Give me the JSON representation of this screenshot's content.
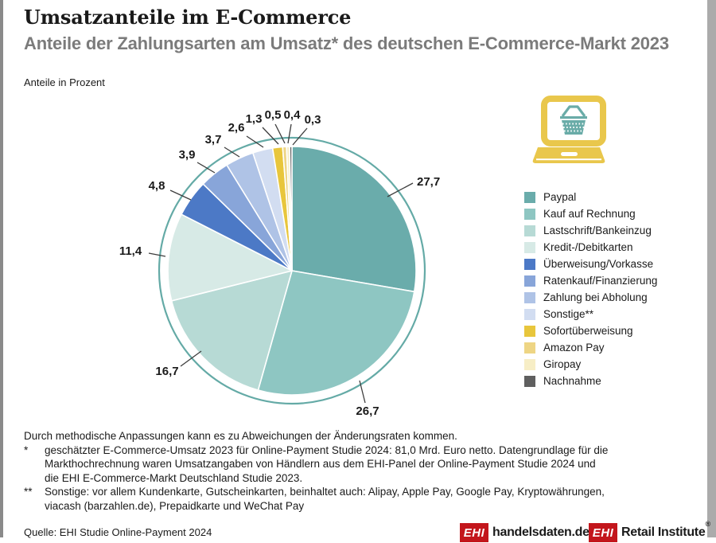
{
  "header": {
    "title": "Umsatzanteile im E-Commerce",
    "subtitle": "Anteile der Zahlungsarten am Umsatz* des deutschen E-Commerce-Markt 2023",
    "unit_label": "Anteile in Prozent"
  },
  "chart_data": {
    "type": "pie",
    "title": "Umsatzanteile im E-Commerce",
    "unit": "Anteile in Prozent",
    "start_angle": "12 o'clock",
    "direction": "clockwise",
    "legend_position": "right",
    "ring_color": "#64aaa6",
    "slices": [
      {
        "label": "Paypal",
        "value": 27.7,
        "display": "27,7",
        "color": "#6aacab"
      },
      {
        "label": "Kauf auf Rechnung",
        "value": 26.7,
        "display": "26,7",
        "color": "#8ec6c2"
      },
      {
        "label": "Lastschrift/Bankeinzug",
        "value": 16.7,
        "display": "16,7",
        "color": "#b7dad5"
      },
      {
        "label": "Kredit-/Debitkarten",
        "value": 11.4,
        "display": "11,4",
        "color": "#d7eae6"
      },
      {
        "label": "Überweisung/Vorkasse",
        "value": 4.8,
        "display": "4,8",
        "color": "#4c79c6"
      },
      {
        "label": "Ratenkauf/Finanzierung",
        "value": 3.9,
        "display": "3,9",
        "color": "#88a5d9"
      },
      {
        "label": "Zahlung bei Abholung",
        "value": 3.7,
        "display": "3,7",
        "color": "#afc3e6"
      },
      {
        "label": "Sonstige**",
        "value": 2.6,
        "display": "2,6",
        "color": "#d2ddf1"
      },
      {
        "label": "Sofortüberweisung",
        "value": 1.3,
        "display": "1,3",
        "color": "#e8c63c"
      },
      {
        "label": "Amazon Pay",
        "value": 0.5,
        "display": "0,5",
        "color": "#eed584"
      },
      {
        "label": "Giropay",
        "value": 0.4,
        "display": "0,4",
        "color": "#f7eec6"
      },
      {
        "label": "Nachnahme",
        "value": 0.3,
        "display": "0,3",
        "color": "#5f5f5f"
      }
    ]
  },
  "icon": {
    "name": "laptop-shopping-basket-icon",
    "laptop_color": "#e9c74c",
    "basket_color": "#6aaca8"
  },
  "footnotes": {
    "intro": "Durch methodische Anpassungen kann es zu Abweichungen der Änderungsraten kommen.",
    "items": [
      {
        "marker": "*",
        "text": "geschätzter E-Commerce-Umsatz 2023 für Online-Payment Studie 2024: 81,0 Mrd. Euro netto. Datengrundlage für die Markthochrechnung waren Umsatzangaben von Händlern aus dem EHI-Panel der Online-Payment Studie 2024 und die EHI E-Commerce-Markt Deutschland Studie 2023."
      },
      {
        "marker": "**",
        "text": "Sonstige: vor allem Kundenkarte, Gutscheinkarten, beinhaltet auch: Alipay, Apple Pay, Google Pay, Kryptowährungen, viacash (barzahlen.de), Prepaidkarte und WeChat Pay"
      }
    ]
  },
  "footer": {
    "source": "Quelle: EHI Studie Online-Payment 2024",
    "logos": [
      {
        "box": "EHI",
        "text": "handelsdaten.de",
        "sup": ""
      },
      {
        "box": "EHI",
        "text": "Retail Institute",
        "sup": "®"
      }
    ]
  }
}
